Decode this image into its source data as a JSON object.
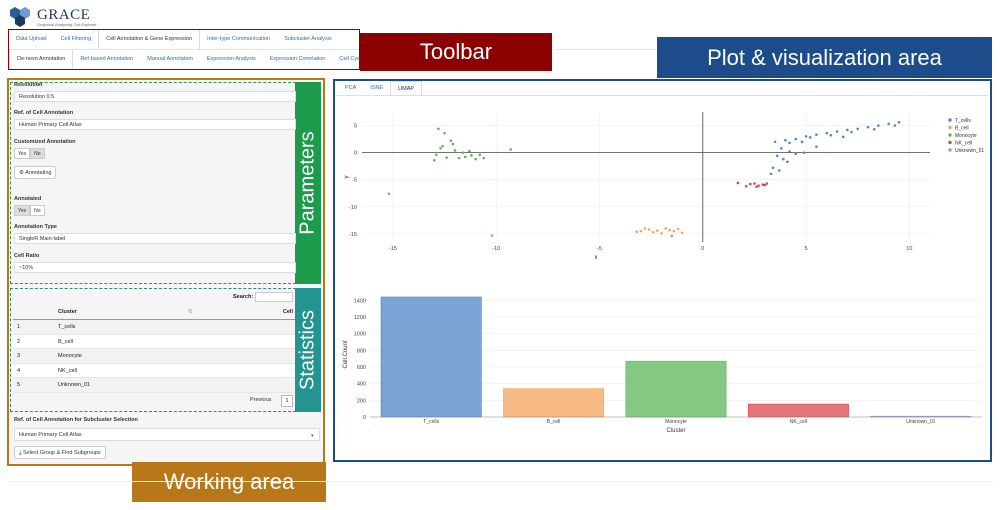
{
  "app": {
    "title": "GRACE",
    "subtitle": "Graphical Analyzing Cell Explorer"
  },
  "toolbar": {
    "label": "Toolbar",
    "row1": [
      "Data Upload",
      "Cell Filtering",
      "Cell Annotation & Gene Expression",
      "Inter-type Communication",
      "Subcluster Analysis"
    ],
    "row2": [
      "De-novo Annotation",
      "Ref-based Annotation",
      "Manual Annotation",
      "Expression Analysis",
      "Expression Correlation",
      "Cell Cycle"
    ]
  },
  "working": {
    "label": "Working area",
    "parameters_label": "Parameters",
    "statistics_label": "Statistics",
    "resolution_label": "Resolution",
    "resolution_value": "Resolution 0.5",
    "ref_label": "Ref. of Cell Annotation",
    "ref_value": "Human Primary Cell Atlas",
    "custom_label": "Customized Annotation",
    "custom_yes": "Yes",
    "custom_no": "No",
    "annotating_button": "Annotating",
    "annotated_label": "Annotated",
    "annotated_yes": "Yes",
    "annotated_no": "No",
    "annotation_type_label": "Annotation Type",
    "annotation_type_value": "SingleR Main-label",
    "cell_ratio_label": "Cell Ratio",
    "cell_ratio_value": "~10%",
    "search_label": "Search:",
    "table_headers": [
      "",
      "Cluster",
      "Cell"
    ],
    "table_rows": [
      {
        "idx": "1",
        "cluster": "T_cells"
      },
      {
        "idx": "2",
        "cluster": "B_cell"
      },
      {
        "idx": "3",
        "cluster": "Monocyte"
      },
      {
        "idx": "4",
        "cluster": "NK_cell"
      },
      {
        "idx": "5",
        "cluster": "Unknown_01"
      }
    ],
    "pager_prev": "Previous",
    "pager_page": "1",
    "subcluster_ref_label": "Ref. of Cell Annotation for Subcluster Selection",
    "subcluster_ref_value": "Human Primary Cell Atlas",
    "select_group_button": "Select Group & Find Subgroups"
  },
  "plot": {
    "label": "Plot & visualization area",
    "tabs": [
      "PCA",
      "tSNE",
      "UMAP"
    ],
    "active_tab": "UMAP"
  },
  "colors": {
    "T_cells": "#4f86c6",
    "B_cell": "#f4a35b",
    "Monocyte": "#5bb55b",
    "NK_cell": "#d9454a",
    "Unknown_01": "#a88fd1"
  },
  "chart_data": [
    {
      "type": "scatter",
      "xlabel": "x",
      "ylabel": "y",
      "xlim": [
        -16.5,
        11
      ],
      "ylim": [
        -16.5,
        7.5
      ],
      "xticks": [
        -15,
        -10,
        -5,
        0,
        5,
        10
      ],
      "yticks": [
        5,
        0,
        -5,
        -10,
        -15
      ],
      "legend": [
        "T_cells",
        "B_cell",
        "Monocyte",
        "NK_cell",
        "Unknown_01"
      ],
      "legend_position": "right",
      "series": [
        {
          "name": "T_cells",
          "points": [
            [
              3.5,
              2.0
            ],
            [
              4.0,
              2.3
            ],
            [
              4.5,
              2.5
            ],
            [
              5.0,
              3.0
            ],
            [
              5.5,
              3.3
            ],
            [
              6.0,
              3.6
            ],
            [
              6.5,
              3.9
            ],
            [
              7.0,
              4.2
            ],
            [
              7.5,
              4.4
            ],
            [
              8.0,
              4.7
            ],
            [
              8.5,
              5.0
            ],
            [
              9.0,
              5.3
            ],
            [
              9.5,
              5.6
            ],
            [
              4.2,
              1.8
            ],
            [
              4.8,
              2.0
            ],
            [
              5.2,
              2.8
            ],
            [
              6.2,
              3.2
            ],
            [
              7.2,
              3.8
            ],
            [
              8.3,
              4.3
            ],
            [
              9.3,
              5.0
            ],
            [
              3.8,
              0.8
            ],
            [
              4.2,
              0.2
            ],
            [
              4.5,
              -0.2
            ],
            [
              4.9,
              0.0
            ],
            [
              3.6,
              -0.6
            ],
            [
              3.9,
              -1.2
            ],
            [
              4.1,
              -1.7
            ],
            [
              3.4,
              -2.8
            ],
            [
              3.7,
              -3.3
            ],
            [
              3.3,
              -3.9
            ],
            [
              5.5,
              1.1
            ],
            [
              6.8,
              2.9
            ]
          ]
        },
        {
          "name": "B_cell",
          "points": [
            [
              -3.0,
              -14.5
            ],
            [
              -2.6,
              -14.2
            ],
            [
              -2.2,
              -14.4
            ],
            [
              -1.8,
              -14.0
            ],
            [
              -1.4,
              -14.5
            ],
            [
              -1.0,
              -14.8
            ],
            [
              -2.8,
              -14.0
            ],
            [
              -2.0,
              -14.9
            ],
            [
              -1.6,
              -14.3
            ],
            [
              -3.2,
              -14.6
            ],
            [
              -1.2,
              -14.1
            ],
            [
              -2.4,
              -14.7
            ]
          ]
        },
        {
          "name": "Monocyte",
          "points": [
            [
              -12.8,
              4.4
            ],
            [
              -12.5,
              3.6
            ],
            [
              -12.2,
              2.2
            ],
            [
              -12.6,
              1.2
            ],
            [
              -12.0,
              0.4
            ],
            [
              -11.6,
              0.0
            ],
            [
              -11.2,
              -0.5
            ],
            [
              -12.4,
              -0.9
            ],
            [
              -11.8,
              -1.0
            ],
            [
              -11.0,
              -1.2
            ],
            [
              -12.9,
              -0.4
            ],
            [
              -11.5,
              -0.8
            ],
            [
              -12.1,
              1.6
            ],
            [
              -10.8,
              -0.4
            ],
            [
              -12.7,
              0.8
            ],
            [
              -11.3,
              0.3
            ],
            [
              -13.0,
              -1.4
            ],
            [
              -10.6,
              -1.0
            ],
            [
              -9.3,
              0.6
            ]
          ]
        },
        {
          "name": "NK_cell",
          "points": [
            [
              1.7,
              -5.6
            ],
            [
              2.3,
              -5.8
            ],
            [
              2.7,
              -6.1
            ],
            [
              3.0,
              -6.0
            ],
            [
              2.5,
              -5.7
            ],
            [
              2.9,
              -5.9
            ],
            [
              2.1,
              -6.2
            ],
            [
              3.1,
              -5.7
            ],
            [
              2.6,
              -6.3
            ]
          ]
        },
        {
          "name": "Unknown_01",
          "points": [
            [
              -15.2,
              -7.6
            ],
            [
              -10.2,
              -15.3
            ],
            [
              -1.5,
              -15.4
            ]
          ]
        }
      ]
    },
    {
      "type": "bar",
      "xlabel": "Cluster",
      "ylabel": "Cell.Count",
      "ylim": [
        0,
        1500
      ],
      "yticks": [
        0,
        200,
        400,
        600,
        800,
        1000,
        1200,
        1400
      ],
      "categories": [
        "T_cells",
        "B_cell",
        "Monocyte",
        "NK_cell",
        "Unknown_01"
      ],
      "values": [
        1440,
        340,
        670,
        155,
        10
      ]
    }
  ]
}
